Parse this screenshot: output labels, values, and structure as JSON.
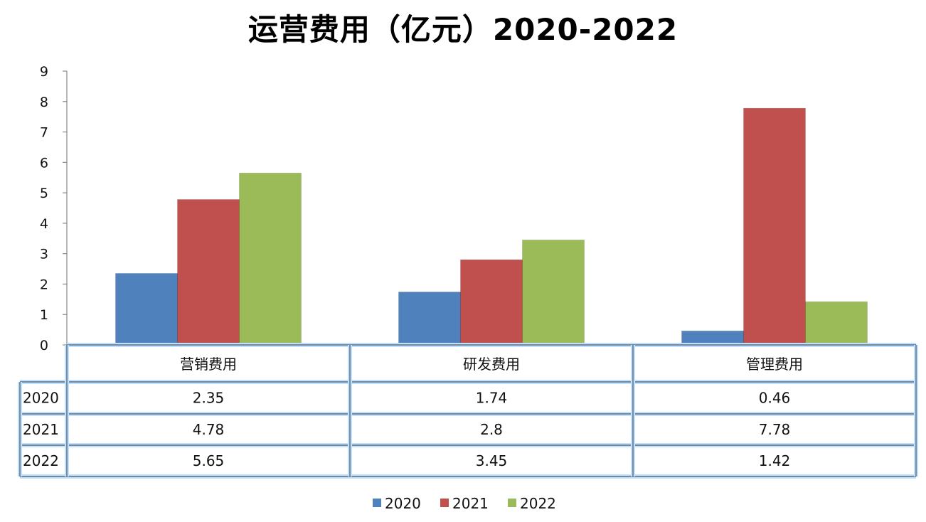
{
  "chart_data": {
    "type": "bar",
    "title": "运营费用（亿元）2020-2022",
    "categories": [
      "营销费用",
      "研发费用",
      "管理费用"
    ],
    "series": [
      {
        "name": "2020",
        "color": "#4f81bd",
        "values": [
          2.35,
          1.74,
          0.46
        ],
        "labels": [
          "2.35",
          "1.74",
          "0.46"
        ]
      },
      {
        "name": "2021",
        "color": "#c0504d",
        "values": [
          4.78,
          2.8,
          7.78
        ],
        "labels": [
          "4.78",
          "2.8",
          "7.78"
        ]
      },
      {
        "name": "2022",
        "color": "#9bbb59",
        "values": [
          5.65,
          3.45,
          1.42
        ],
        "labels": [
          "5.65",
          "3.45",
          "1.42"
        ]
      }
    ],
    "ylim": [
      0,
      9
    ],
    "yticks": [
      0,
      1,
      2,
      3,
      4,
      5,
      6,
      7,
      8,
      9
    ],
    "data_table": true,
    "legend": "bottom"
  }
}
